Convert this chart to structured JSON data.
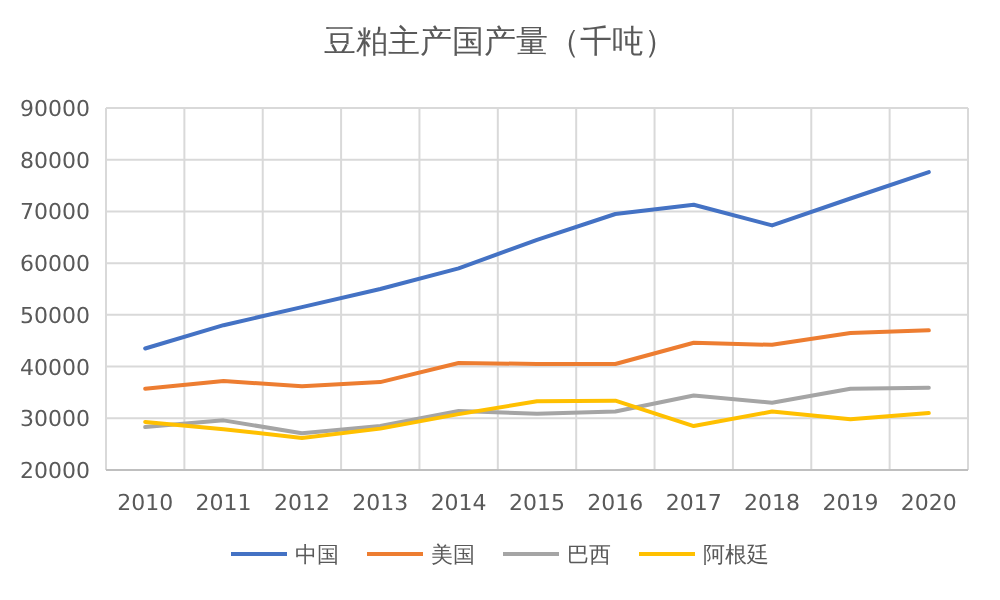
{
  "chart_data": {
    "type": "line",
    "title": "豆粕主产国产量（千吨）",
    "categories": [
      "2010",
      "2011",
      "2012",
      "2013",
      "2014",
      "2015",
      "2016",
      "2017",
      "2018",
      "2019",
      "2020"
    ],
    "series": [
      {
        "name": "中国",
        "color": "#4472c4",
        "values": [
          43500,
          48000,
          51500,
          55000,
          59000,
          64500,
          69500,
          71300,
          67300,
          72500,
          77600
        ]
      },
      {
        "name": "美国",
        "color": "#ed7d31",
        "values": [
          35700,
          37200,
          36200,
          37000,
          40700,
          40500,
          40500,
          44600,
          44200,
          46500,
          47000
        ]
      },
      {
        "name": "巴西",
        "color": "#a5a5a5",
        "values": [
          28300,
          29600,
          27100,
          28500,
          31400,
          30900,
          31300,
          34400,
          33000,
          35700,
          35900
        ]
      },
      {
        "name": "阿根廷",
        "color": "#ffc000",
        "values": [
          29300,
          27900,
          26200,
          28000,
          30800,
          33300,
          33400,
          28500,
          31300,
          29800,
          31000
        ]
      }
    ],
    "ylim": [
      20000,
      90000
    ],
    "yticks": [
      20000,
      30000,
      40000,
      50000,
      60000,
      70000,
      80000,
      90000
    ],
    "grid": true,
    "legend": "bottom",
    "marker": "none",
    "line_style": "solid"
  }
}
